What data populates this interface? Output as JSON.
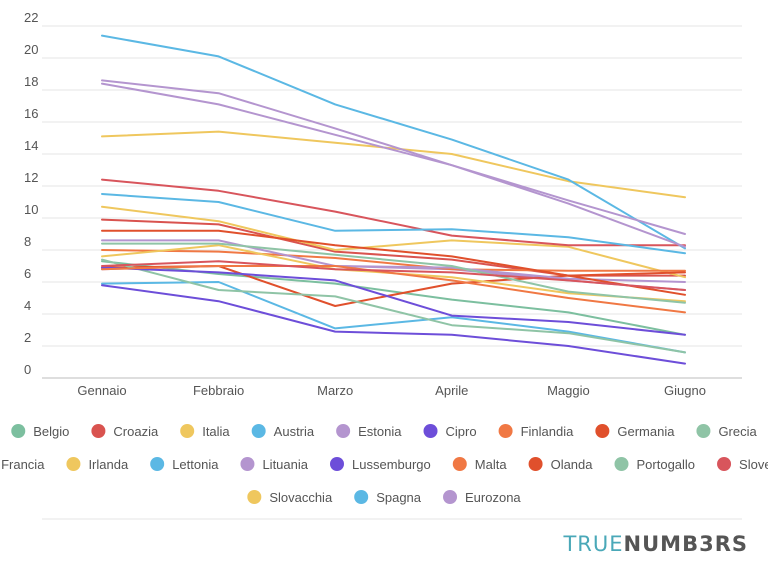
{
  "chart_data": {
    "type": "line",
    "categories": [
      "Gennaio",
      "Febbraio",
      "Marzo",
      "Aprile",
      "Maggio",
      "Giugno"
    ],
    "ylim": [
      0,
      22
    ],
    "yticks": [
      0,
      2,
      4,
      6,
      8,
      10,
      12,
      14,
      16,
      18,
      20,
      22
    ],
    "grid": true,
    "legend_position": "bottom",
    "series": [
      {
        "name": "Belgio",
        "color": "#7cbf9f",
        "values": [
          7.3,
          6.5,
          5.9,
          4.9,
          4.1,
          2.7
        ]
      },
      {
        "name": "Croazia",
        "color": "#d9534f",
        "values": [
          9.9,
          9.6,
          7.9,
          7.4,
          6.4,
          6.4
        ]
      },
      {
        "name": "Italia",
        "color": "#efc75e",
        "values": [
          10.7,
          9.8,
          8.0,
          8.6,
          8.2,
          6.3
        ]
      },
      {
        "name": "Austria",
        "color": "#5bb8e4",
        "values": [
          5.9,
          6.0,
          3.1,
          3.8,
          2.9,
          1.6
        ]
      },
      {
        "name": "Estonia",
        "color": "#b495cf",
        "values": [
          6.8,
          7.0,
          7.0,
          6.8,
          6.1,
          5.5
        ]
      },
      {
        "name": "Cipro",
        "color": "#6d4ed9",
        "values": [
          5.8,
          4.8,
          2.9,
          2.7,
          2.0,
          0.9
        ]
      },
      {
        "name": "Finlandia",
        "color": "#f07844",
        "values": [
          8.0,
          7.9,
          7.5,
          6.8,
          6.7,
          6.7
        ]
      },
      {
        "name": "Germania",
        "color": "#e0502c",
        "values": [
          6.9,
          7.0,
          4.5,
          5.9,
          6.4,
          6.6
        ]
      },
      {
        "name": "Grecia",
        "color": "#8fc4a6",
        "values": [
          7.4,
          5.5,
          5.1,
          3.3,
          2.8,
          1.6
        ]
      },
      {
        "name": "Francia",
        "color": "#d8555c",
        "values": [
          12.4,
          11.7,
          10.4,
          8.9,
          8.3,
          8.3
        ]
      },
      {
        "name": "Irlanda",
        "color": "#efc75e",
        "values": [
          7.6,
          8.3,
          6.8,
          6.3,
          5.3,
          4.8
        ]
      },
      {
        "name": "Lettonia",
        "color": "#5bb8e4",
        "values": [
          11.5,
          11.0,
          9.2,
          9.3,
          8.8,
          7.8
        ]
      },
      {
        "name": "Lituania",
        "color": "#b495cf",
        "values": [
          8.6,
          8.6,
          7.0,
          6.9,
          6.2,
          6.0
        ]
      },
      {
        "name": "Lussemburgo",
        "color": "#6d4ed9",
        "values": [
          6.9,
          6.6,
          6.1,
          3.9,
          3.5,
          2.7
        ]
      },
      {
        "name": "Malta",
        "color": "#f07844",
        "values": [
          6.8,
          7.0,
          7.0,
          6.1,
          5.0,
          4.1
        ]
      },
      {
        "name": "Olanda",
        "color": "#e0502c",
        "values": [
          9.2,
          9.2,
          8.3,
          7.6,
          6.4,
          5.2
        ]
      },
      {
        "name": "Portogallo",
        "color": "#8fc4a6",
        "values": [
          8.4,
          8.4,
          7.7,
          7.0,
          5.4,
          4.7
        ]
      },
      {
        "name": "Slovenia",
        "color": "#d8555c",
        "values": [
          7.0,
          7.3,
          6.8,
          6.6,
          6.1,
          5.5
        ]
      },
      {
        "name": "Slovacchia",
        "color": "#efc75e",
        "values": [
          15.1,
          15.4,
          14.7,
          14.0,
          12.3,
          11.3
        ]
      },
      {
        "name": "Spagna",
        "color": "#5bb8e4",
        "values": [
          21.4,
          20.1,
          17.1,
          14.9,
          12.4,
          8.1
        ]
      },
      {
        "name": "Eurozona",
        "color": "#b495cf",
        "values": [
          18.4,
          17.1,
          15.2,
          13.3,
          11.1,
          9.0
        ]
      },
      {
        "name": "",
        "color": "#b495cf",
        "values": [
          18.6,
          17.8,
          15.6,
          13.3,
          10.9,
          8.2
        ]
      }
    ]
  },
  "brand": {
    "part1": "TRUE",
    "part2": "NUMB3RS"
  }
}
